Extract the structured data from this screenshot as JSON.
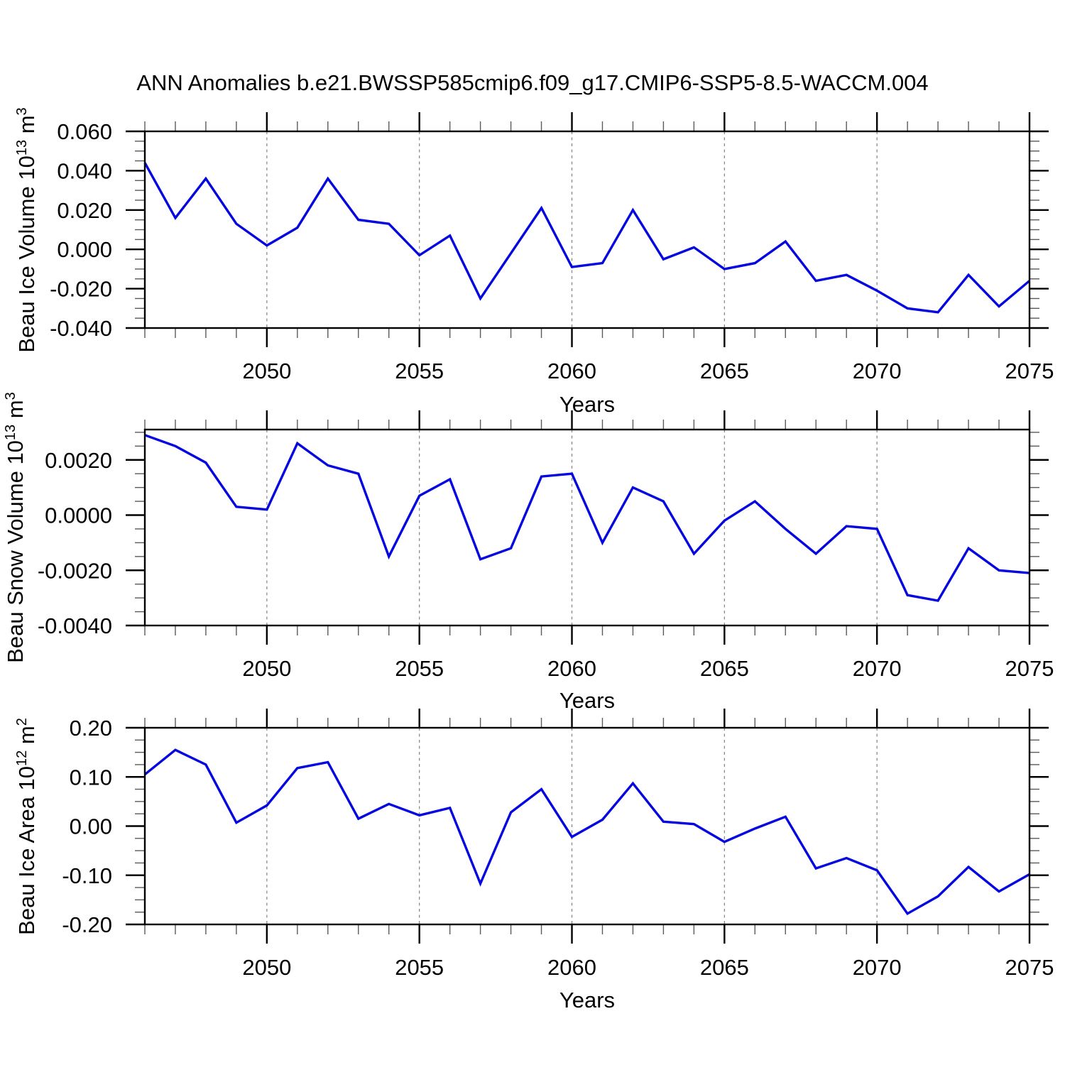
{
  "page": {
    "title": "ANN Anomalies b.e21.BWSSP585cmip6.f09_g17.CMIP6-SSP5-8.5-WACCM.004"
  },
  "style": {
    "line_color": "#0505e0",
    "grid_color": "#828282",
    "axis_color": "#000000",
    "minor_tick_color": "#5a5a5a"
  },
  "chart_data": [
    {
      "type": "line",
      "id": "beau-ice-volume",
      "ylabel": {
        "prefix": "Beau Ice Volume 10",
        "sup1": "13",
        "mid": " m",
        "sup2": "3"
      },
      "xlabel": "Years",
      "xlim": [
        2046,
        2075
      ],
      "ylim": [
        -0.04,
        0.06
      ],
      "x": [
        2046,
        2047,
        2048,
        2049,
        2050,
        2051,
        2052,
        2053,
        2054,
        2055,
        2056,
        2057,
        2058,
        2059,
        2060,
        2061,
        2062,
        2063,
        2064,
        2065,
        2066,
        2067,
        2068,
        2069,
        2070,
        2071,
        2072,
        2073,
        2074,
        2075
      ],
      "values": [
        0.044,
        0.016,
        0.036,
        0.013,
        0.002,
        0.011,
        0.036,
        0.015,
        0.013,
        -0.003,
        0.007,
        -0.025,
        -0.002,
        0.021,
        -0.009,
        -0.007,
        0.02,
        -0.005,
        0.001,
        -0.01,
        -0.007,
        0.004,
        -0.016,
        -0.013,
        -0.021,
        -0.03,
        -0.032,
        -0.013,
        -0.029,
        -0.016
      ],
      "yticks": {
        "labels": [
          "0.060",
          "0.040",
          "0.020",
          "0.000",
          "-0.020",
          "-0.040"
        ],
        "values": [
          0.06,
          0.04,
          0.02,
          0.0,
          -0.02,
          -0.04
        ]
      },
      "yminor_step": 0.005,
      "xticks": {
        "labels": [
          "2050",
          "2055",
          "2060",
          "2065",
          "2070",
          "2075"
        ],
        "values": [
          2050,
          2055,
          2060,
          2065,
          2070,
          2075
        ]
      },
      "xminor_step": 1,
      "grid_x": [
        2050,
        2055,
        2060,
        2065,
        2070
      ]
    },
    {
      "type": "line",
      "id": "beau-snow-volume",
      "ylabel": {
        "prefix": "Beau Snow Volume 10",
        "sup1": "13",
        "mid": " m",
        "sup2": "3"
      },
      "xlabel": "Years",
      "xlim": [
        2046,
        2075
      ],
      "ylim": [
        -0.004,
        0.0031
      ],
      "x": [
        2046,
        2047,
        2048,
        2049,
        2050,
        2051,
        2052,
        2053,
        2054,
        2055,
        2056,
        2057,
        2058,
        2059,
        2060,
        2061,
        2062,
        2063,
        2064,
        2065,
        2066,
        2067,
        2068,
        2069,
        2070,
        2071,
        2072,
        2073,
        2074,
        2075
      ],
      "values": [
        0.0029,
        0.0025,
        0.0019,
        0.0003,
        0.0002,
        0.0026,
        0.0018,
        0.0015,
        -0.0015,
        0.0007,
        0.0013,
        -0.0016,
        -0.0012,
        0.0014,
        0.0015,
        -0.001,
        0.001,
        0.0005,
        -0.0014,
        -0.0002,
        0.0005,
        -0.0005,
        -0.0014,
        -0.0004,
        -0.0005,
        -0.0029,
        -0.0031,
        -0.0012,
        -0.002,
        -0.0021
      ],
      "yticks": {
        "labels": [
          "0.0020",
          "0.0000",
          "-0.0020",
          "-0.0040"
        ],
        "values": [
          0.002,
          0.0,
          -0.002,
          -0.004
        ]
      },
      "yminor_step": 0.0005,
      "xticks": {
        "labels": [
          "2050",
          "2055",
          "2060",
          "2065",
          "2070",
          "2075"
        ],
        "values": [
          2050,
          2055,
          2060,
          2065,
          2070,
          2075
        ]
      },
      "xminor_step": 1,
      "grid_x": [
        2050,
        2055,
        2060,
        2065,
        2070
      ]
    },
    {
      "type": "line",
      "id": "beau-ice-area",
      "ylabel": {
        "prefix": "Beau Ice Area 10",
        "sup1": "12",
        "mid": " m",
        "sup2": "2"
      },
      "xlabel": "Years",
      "xlim": [
        2046,
        2075
      ],
      "ylim": [
        -0.2,
        0.2
      ],
      "x": [
        2046,
        2047,
        2048,
        2049,
        2050,
        2051,
        2052,
        2053,
        2054,
        2055,
        2056,
        2057,
        2058,
        2059,
        2060,
        2061,
        2062,
        2063,
        2064,
        2065,
        2066,
        2067,
        2068,
        2069,
        2070,
        2071,
        2072,
        2073,
        2074,
        2075
      ],
      "values": [
        0.105,
        0.155,
        0.125,
        0.007,
        0.042,
        0.118,
        0.13,
        0.015,
        0.045,
        0.022,
        0.037,
        -0.117,
        0.028,
        0.075,
        -0.022,
        0.013,
        0.087,
        0.009,
        0.004,
        -0.032,
        -0.005,
        0.019,
        -0.086,
        -0.065,
        -0.09,
        -0.178,
        -0.143,
        -0.083,
        -0.133,
        -0.098
      ],
      "yticks": {
        "labels": [
          "0.20",
          "0.10",
          "0.00",
          "-0.10",
          "-0.20"
        ],
        "values": [
          0.2,
          0.1,
          0.0,
          -0.1,
          -0.2
        ]
      },
      "yminor_step": 0.025,
      "xticks": {
        "labels": [
          "2050",
          "2055",
          "2060",
          "2065",
          "2070",
          "2075"
        ],
        "values": [
          2050,
          2055,
          2060,
          2065,
          2070,
          2075
        ]
      },
      "xminor_step": 1,
      "grid_x": [
        2050,
        2055,
        2060,
        2065,
        2070
      ]
    }
  ]
}
